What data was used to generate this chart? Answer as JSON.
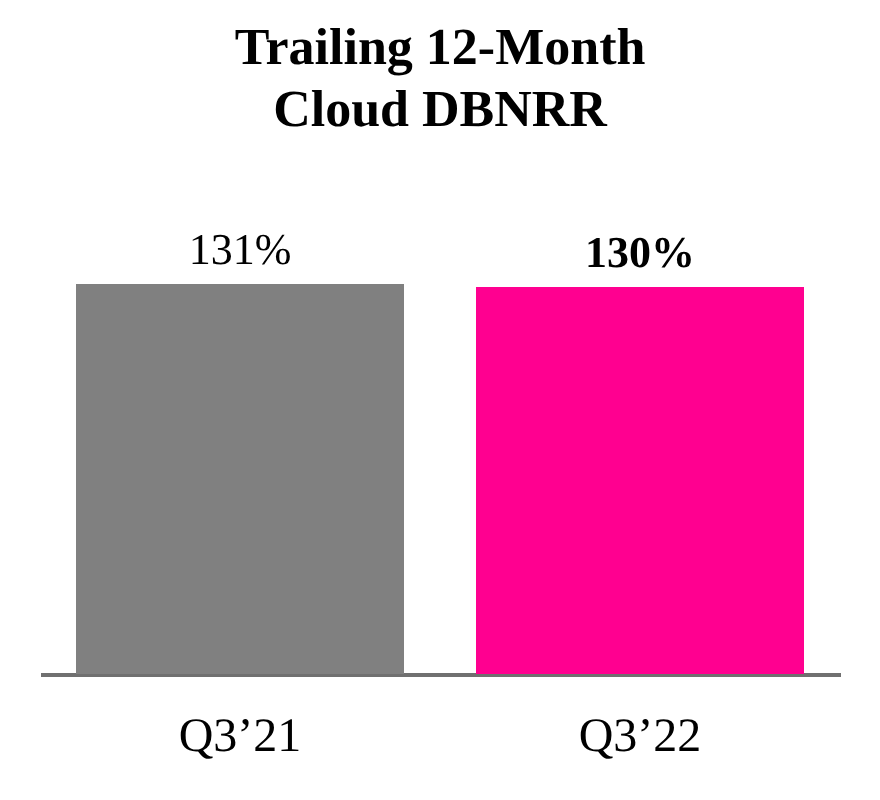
{
  "chart_data": {
    "type": "bar",
    "title": "Trailing 12-Month\nCloud DBNRR",
    "categories": [
      "Q3’21",
      "Q3’22"
    ],
    "values": [
      131,
      130
    ],
    "colors": [
      "#808080",
      "#ff0090"
    ],
    "value_labels": [
      "131%",
      "130%"
    ],
    "tick_labels": "x"
  }
}
